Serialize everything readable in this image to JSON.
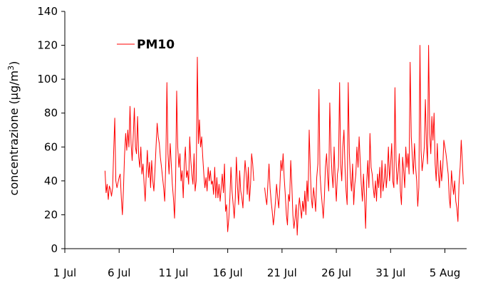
{
  "chart_data": {
    "type": "line",
    "title": "",
    "xlabel": "",
    "ylabel_main": "concentrazione (μg/m",
    "ylabel_sup": "3",
    "ylabel_close": ")",
    "xlim_day": [
      1,
      38
    ],
    "ylim": [
      0,
      140
    ],
    "y_ticks": [
      0,
      20,
      40,
      60,
      80,
      100,
      120,
      140
    ],
    "x_ticks": [
      {
        "day": 1,
        "label": "1 Jul"
      },
      {
        "day": 6,
        "label": "6 Jul"
      },
      {
        "day": 11,
        "label": "11 Jul"
      },
      {
        "day": 16,
        "label": "16 Jul"
      },
      {
        "day": 21,
        "label": "21 Jul"
      },
      {
        "day": 26,
        "label": "26 Jul"
      },
      {
        "day": 31,
        "label": "31 Jul"
      },
      {
        "day": 36,
        "label": "5 Aug"
      }
    ],
    "grid": false,
    "legend_position": "top-left",
    "series": [
      {
        "name": "PM10",
        "color": "#ff0000",
        "points": [
          [
            4.7,
            46
          ],
          [
            4.8,
            33
          ],
          [
            4.9,
            38
          ],
          [
            5.0,
            29
          ],
          [
            5.1,
            37
          ],
          [
            5.2,
            35
          ],
          [
            5.3,
            31
          ],
          [
            5.4,
            36
          ],
          [
            5.5,
            58
          ],
          [
            5.6,
            77
          ],
          [
            5.7,
            40
          ],
          [
            5.8,
            36
          ],
          [
            5.9,
            39
          ],
          [
            6.0,
            42
          ],
          [
            6.1,
            44
          ],
          [
            6.2,
            30
          ],
          [
            6.3,
            20
          ],
          [
            6.4,
            35
          ],
          [
            6.5,
            55
          ],
          [
            6.6,
            68
          ],
          [
            6.7,
            58
          ],
          [
            6.8,
            70
          ],
          [
            6.9,
            60
          ],
          [
            7.0,
            84
          ],
          [
            7.1,
            62
          ],
          [
            7.2,
            52
          ],
          [
            7.3,
            66
          ],
          [
            7.4,
            83
          ],
          [
            7.5,
            60
          ],
          [
            7.6,
            56
          ],
          [
            7.7,
            78
          ],
          [
            7.8,
            54
          ],
          [
            7.9,
            48
          ],
          [
            8.0,
            60
          ],
          [
            8.1,
            44
          ],
          [
            8.2,
            50
          ],
          [
            8.3,
            38
          ],
          [
            8.4,
            28
          ],
          [
            8.5,
            44
          ],
          [
            8.6,
            58
          ],
          [
            8.7,
            42
          ],
          [
            8.8,
            51
          ],
          [
            8.9,
            36
          ],
          [
            9.0,
            52
          ],
          [
            9.1,
            40
          ],
          [
            9.2,
            34
          ],
          [
            9.3,
            46
          ],
          [
            9.4,
            60
          ],
          [
            9.5,
            74
          ],
          [
            9.6,
            66
          ],
          [
            9.7,
            62
          ],
          [
            9.8,
            54
          ],
          [
            9.9,
            48
          ],
          [
            10.0,
            42
          ],
          [
            10.1,
            36
          ],
          [
            10.2,
            28
          ],
          [
            10.3,
            52
          ],
          [
            10.4,
            98
          ],
          [
            10.5,
            56
          ],
          [
            10.6,
            44
          ],
          [
            10.7,
            62
          ],
          [
            10.8,
            50
          ],
          [
            10.9,
            38
          ],
          [
            11.0,
            30
          ],
          [
            11.1,
            18
          ],
          [
            11.2,
            40
          ],
          [
            11.3,
            93
          ],
          [
            11.4,
            60
          ],
          [
            11.5,
            48
          ],
          [
            11.6,
            56
          ],
          [
            11.7,
            40
          ],
          [
            11.8,
            46
          ],
          [
            11.9,
            30
          ],
          [
            12.0,
            50
          ],
          [
            12.1,
            60
          ],
          [
            12.2,
            42
          ],
          [
            12.3,
            46
          ],
          [
            12.4,
            38
          ],
          [
            12.5,
            66
          ],
          [
            12.6,
            52
          ],
          [
            12.7,
            44
          ],
          [
            12.8,
            38
          ],
          [
            12.9,
            56
          ],
          [
            13.0,
            34
          ],
          [
            13.1,
            40
          ],
          [
            13.2,
            113
          ],
          [
            13.3,
            62
          ],
          [
            13.4,
            76
          ],
          [
            13.5,
            60
          ],
          [
            13.6,
            66
          ],
          [
            13.7,
            54
          ],
          [
            13.8,
            44
          ],
          [
            13.9,
            36
          ],
          [
            14.0,
            42
          ],
          [
            14.1,
            34
          ],
          [
            14.2,
            48
          ],
          [
            14.3,
            40
          ],
          [
            14.4,
            46
          ],
          [
            14.5,
            38
          ],
          [
            14.6,
            40
          ],
          [
            14.7,
            32
          ],
          [
            14.8,
            48
          ],
          [
            14.9,
            30
          ],
          [
            15.0,
            42
          ],
          [
            15.1,
            30
          ],
          [
            15.2,
            38
          ],
          [
            15.3,
            28
          ],
          [
            15.4,
            36
          ],
          [
            15.5,
            44
          ],
          [
            15.6,
            33
          ],
          [
            15.7,
            50
          ],
          [
            15.8,
            22
          ],
          [
            15.9,
            26
          ],
          [
            16.0,
            10
          ],
          [
            16.1,
            18
          ],
          [
            16.2,
            30
          ],
          [
            16.3,
            48
          ],
          [
            16.4,
            34
          ],
          [
            16.5,
            26
          ],
          [
            16.6,
            18
          ],
          [
            16.7,
            30
          ],
          [
            16.8,
            54
          ],
          [
            16.9,
            36
          ],
          [
            17.0,
            26
          ],
          [
            17.1,
            46
          ],
          [
            17.2,
            34
          ],
          [
            17.3,
            30
          ],
          [
            17.4,
            24
          ],
          [
            17.5,
            40
          ],
          [
            17.6,
            52
          ],
          [
            17.7,
            44
          ],
          [
            17.8,
            32
          ],
          [
            17.9,
            48
          ],
          [
            18.0,
            28
          ],
          [
            18.1,
            38
          ],
          [
            18.2,
            56
          ],
          [
            18.3,
            50
          ],
          [
            18.4,
            40
          ]
        ]
      },
      {
        "name": "",
        "color": "#ff0000",
        "points": [
          [
            19.4,
            36
          ],
          [
            19.5,
            30
          ],
          [
            19.6,
            26
          ],
          [
            19.7,
            38
          ],
          [
            19.8,
            50
          ],
          [
            19.9,
            36
          ],
          [
            20.0,
            28
          ],
          [
            20.1,
            22
          ],
          [
            20.2,
            14
          ],
          [
            20.3,
            20
          ],
          [
            20.4,
            28
          ],
          [
            20.5,
            38
          ],
          [
            20.6,
            30
          ],
          [
            20.7,
            24
          ],
          [
            20.8,
            36
          ],
          [
            20.9,
            52
          ],
          [
            21.0,
            46
          ],
          [
            21.1,
            56
          ],
          [
            21.2,
            42
          ],
          [
            21.3,
            32
          ],
          [
            21.4,
            20
          ],
          [
            21.5,
            14
          ],
          [
            21.6,
            32
          ],
          [
            21.7,
            28
          ],
          [
            21.8,
            52
          ],
          [
            21.9,
            38
          ],
          [
            22.0,
            20
          ],
          [
            22.1,
            12
          ],
          [
            22.2,
            18
          ],
          [
            22.3,
            26
          ],
          [
            22.4,
            8
          ],
          [
            22.5,
            22
          ],
          [
            22.6,
            30
          ],
          [
            22.7,
            24
          ],
          [
            22.8,
            18
          ],
          [
            22.9,
            28
          ],
          [
            23.0,
            22
          ],
          [
            23.1,
            34
          ],
          [
            23.2,
            20
          ],
          [
            23.3,
            40
          ],
          [
            23.4,
            28
          ],
          [
            23.5,
            70
          ],
          [
            23.6,
            48
          ],
          [
            23.7,
            30
          ],
          [
            23.8,
            24
          ],
          [
            23.9,
            36
          ],
          [
            24.0,
            30
          ],
          [
            24.1,
            22
          ],
          [
            24.2,
            42
          ],
          [
            24.3,
            50
          ],
          [
            24.4,
            94
          ],
          [
            24.5,
            44
          ],
          [
            24.6,
            34
          ],
          [
            24.7,
            26
          ],
          [
            24.8,
            18
          ],
          [
            24.9,
            30
          ],
          [
            25.0,
            48
          ],
          [
            25.1,
            56
          ],
          [
            25.2,
            42
          ],
          [
            25.3,
            34
          ],
          [
            25.4,
            86
          ],
          [
            25.5,
            58
          ],
          [
            25.6,
            44
          ],
          [
            25.7,
            36
          ],
          [
            25.8,
            60
          ],
          [
            25.9,
            40
          ],
          [
            26.0,
            28
          ],
          [
            26.1,
            44
          ],
          [
            26.2,
            48
          ],
          [
            26.3,
            98
          ],
          [
            26.4,
            50
          ],
          [
            26.5,
            40
          ],
          [
            26.6,
            60
          ],
          [
            26.7,
            70
          ],
          [
            26.8,
            48
          ],
          [
            26.9,
            34
          ],
          [
            27.0,
            26
          ],
          [
            27.1,
            98
          ],
          [
            27.2,
            56
          ],
          [
            27.3,
            42
          ],
          [
            27.4,
            34
          ],
          [
            27.5,
            50
          ],
          [
            27.6,
            26
          ],
          [
            27.7,
            38
          ],
          [
            27.8,
            44
          ],
          [
            27.9,
            60
          ],
          [
            28.0,
            48
          ],
          [
            28.1,
            66
          ],
          [
            28.2,
            52
          ],
          [
            28.3,
            38
          ],
          [
            28.4,
            28
          ],
          [
            28.5,
            44
          ],
          [
            28.6,
            30
          ],
          [
            28.7,
            12
          ],
          [
            28.8,
            40
          ],
          [
            28.9,
            52
          ],
          [
            29.0,
            36
          ],
          [
            29.1,
            68
          ],
          [
            29.2,
            48
          ],
          [
            29.3,
            44
          ],
          [
            29.4,
            36
          ],
          [
            29.5,
            30
          ],
          [
            29.6,
            40
          ],
          [
            29.7,
            28
          ],
          [
            29.8,
            44
          ],
          [
            29.9,
            36
          ],
          [
            30.0,
            48
          ],
          [
            30.1,
            30
          ],
          [
            30.2,
            52
          ],
          [
            30.3,
            34
          ],
          [
            30.4,
            40
          ],
          [
            30.5,
            50
          ],
          [
            30.6,
            36
          ],
          [
            30.7,
            44
          ],
          [
            30.8,
            60
          ],
          [
            30.9,
            40
          ],
          [
            31.0,
            50
          ],
          [
            31.1,
            62
          ],
          [
            31.2,
            40
          ],
          [
            31.3,
            36
          ],
          [
            31.4,
            95
          ],
          [
            31.5,
            52
          ],
          [
            31.6,
            38
          ],
          [
            31.7,
            46
          ],
          [
            31.8,
            56
          ],
          [
            31.9,
            34
          ],
          [
            32.0,
            26
          ],
          [
            32.1,
            54
          ],
          [
            32.2,
            46
          ],
          [
            32.3,
            36
          ],
          [
            32.4,
            60
          ],
          [
            32.5,
            48
          ],
          [
            32.6,
            56
          ],
          [
            32.7,
            44
          ],
          [
            32.8,
            110
          ],
          [
            32.9,
            66
          ],
          [
            33.0,
            54
          ],
          [
            33.1,
            44
          ],
          [
            33.2,
            62
          ],
          [
            33.3,
            48
          ],
          [
            33.4,
            40
          ],
          [
            33.5,
            25
          ],
          [
            33.6,
            36
          ],
          [
            33.7,
            120
          ],
          [
            33.8,
            58
          ],
          [
            33.9,
            46
          ],
          [
            34.0,
            52
          ],
          [
            34.1,
            60
          ],
          [
            34.2,
            88
          ],
          [
            34.3,
            62
          ],
          [
            34.4,
            50
          ],
          [
            34.5,
            120
          ],
          [
            34.6,
            68
          ],
          [
            34.7,
            56
          ],
          [
            34.8,
            78
          ],
          [
            34.9,
            64
          ],
          [
            35.0,
            80
          ],
          [
            35.1,
            50
          ],
          [
            35.2,
            40
          ],
          [
            35.3,
            62
          ],
          [
            35.4,
            44
          ],
          [
            35.5,
            36
          ],
          [
            35.6,
            52
          ],
          [
            35.7,
            40
          ],
          [
            35.8,
            48
          ],
          [
            35.9,
            64
          ],
          [
            36.0,
            60
          ],
          [
            36.1,
            56
          ],
          [
            36.2,
            50
          ],
          [
            36.3,
            44
          ],
          [
            36.4,
            30
          ],
          [
            36.5,
            24
          ],
          [
            36.6,
            46
          ],
          [
            36.7,
            38
          ],
          [
            36.8,
            32
          ],
          [
            36.9,
            40
          ],
          [
            37.0,
            28
          ],
          [
            37.1,
            24
          ],
          [
            37.2,
            16
          ],
          [
            37.3,
            38
          ],
          [
            37.4,
            48
          ],
          [
            37.5,
            64
          ],
          [
            37.6,
            52
          ],
          [
            37.7,
            38
          ]
        ]
      }
    ]
  }
}
